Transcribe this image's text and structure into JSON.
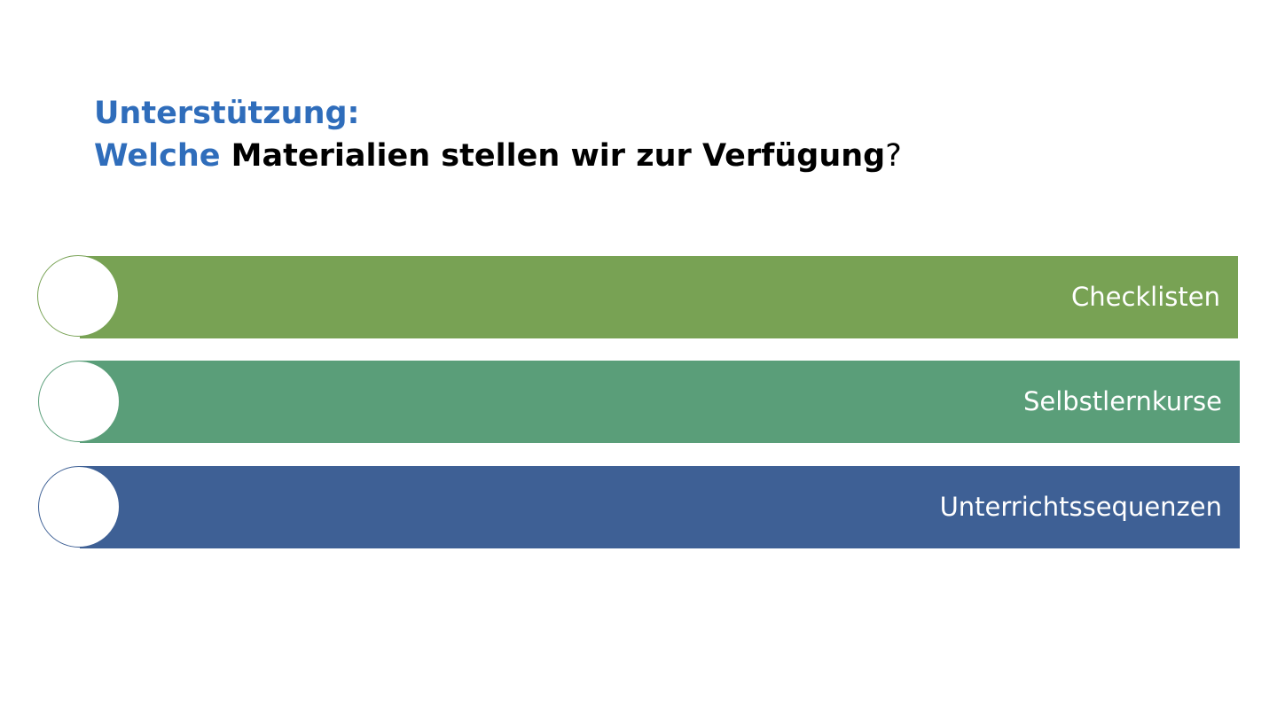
{
  "title": {
    "line1": "Unterstützung:",
    "line2_blue": "Welche",
    "line2_black": " Materialien stellen wir zur Verfügung",
    "line2_end": "?"
  },
  "items": [
    {
      "label": "Checklisten",
      "color": "#78a254"
    },
    {
      "label": "Selbstlernkurse",
      "color": "#5a9e79"
    },
    {
      "label": "Unterrichtssequenzen",
      "color": "#3e6095"
    }
  ],
  "colors": {
    "title_accent": "#2f6dbb",
    "background": "#ffffff"
  }
}
